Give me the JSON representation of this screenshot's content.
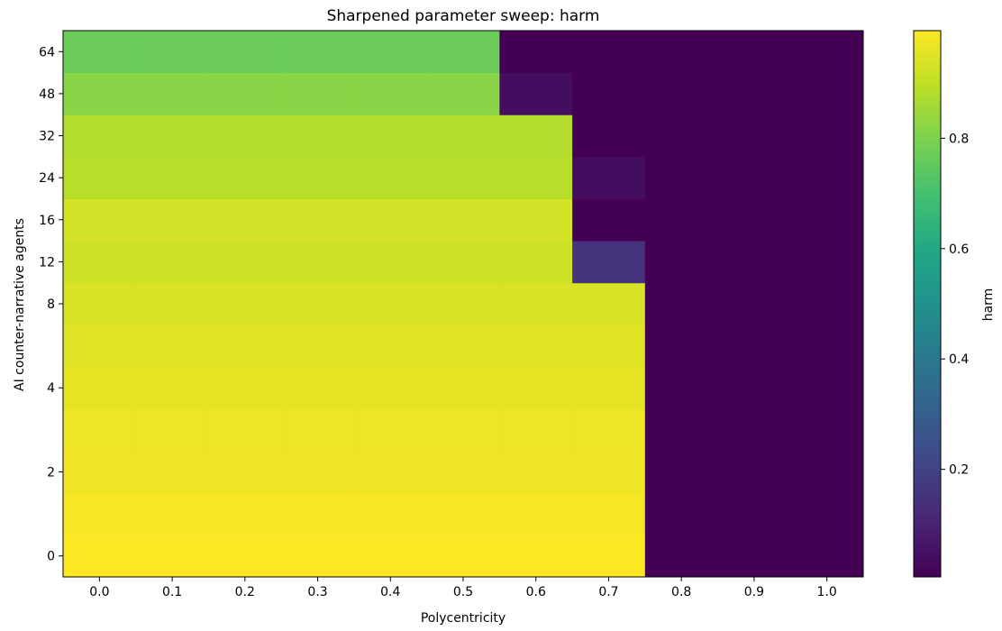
{
  "chart_data": {
    "type": "heatmap",
    "title": "Sharpened parameter sweep: harm",
    "xlabel": "Polycentricity",
    "ylabel": "AI counter-narrative agents",
    "x": [
      0.0,
      0.1,
      0.2,
      0.3,
      0.4,
      0.5,
      0.6,
      0.7,
      0.8,
      0.9,
      1.0
    ],
    "x_tick_labels": [
      "0.0",
      "0.1",
      "0.2",
      "0.3",
      "0.4",
      "0.5",
      "0.6",
      "0.7",
      "0.8",
      "0.9",
      "1.0"
    ],
    "y": [
      0,
      1,
      2,
      3,
      4,
      6,
      8,
      12,
      16,
      24,
      32,
      48,
      64
    ],
    "y_tick_labels": [
      "0",
      "2",
      "4",
      "8",
      "12",
      "16",
      "24",
      "32",
      "48",
      "64"
    ],
    "values": [
      [
        0.995,
        0.995,
        0.995,
        0.995,
        0.995,
        0.995,
        0.995,
        0.995,
        0.005,
        0.005,
        0.005
      ],
      [
        0.985,
        0.985,
        0.985,
        0.985,
        0.985,
        0.985,
        0.985,
        0.985,
        0.005,
        0.005,
        0.005
      ],
      [
        0.975,
        0.975,
        0.975,
        0.975,
        0.975,
        0.975,
        0.975,
        0.975,
        0.005,
        0.005,
        0.005
      ],
      [
        0.97,
        0.97,
        0.97,
        0.97,
        0.97,
        0.97,
        0.97,
        0.97,
        0.005,
        0.005,
        0.005
      ],
      [
        0.96,
        0.96,
        0.96,
        0.96,
        0.96,
        0.96,
        0.96,
        0.96,
        0.005,
        0.005,
        0.005
      ],
      [
        0.95,
        0.95,
        0.95,
        0.95,
        0.95,
        0.95,
        0.95,
        0.95,
        0.005,
        0.005,
        0.005
      ],
      [
        0.94,
        0.94,
        0.94,
        0.94,
        0.94,
        0.94,
        0.94,
        0.94,
        0.005,
        0.005,
        0.005
      ],
      [
        0.92,
        0.92,
        0.92,
        0.92,
        0.92,
        0.92,
        0.92,
        0.15,
        0.005,
        0.005,
        0.005
      ],
      [
        0.93,
        0.93,
        0.93,
        0.93,
        0.93,
        0.93,
        0.93,
        0.005,
        0.005,
        0.005,
        0.005
      ],
      [
        0.89,
        0.89,
        0.89,
        0.89,
        0.89,
        0.89,
        0.89,
        0.04,
        0.005,
        0.005,
        0.005
      ],
      [
        0.88,
        0.88,
        0.88,
        0.88,
        0.88,
        0.88,
        0.88,
        0.005,
        0.005,
        0.005,
        0.005
      ],
      [
        0.82,
        0.82,
        0.82,
        0.82,
        0.82,
        0.82,
        0.04,
        0.005,
        0.005,
        0.005,
        0.005
      ],
      [
        0.77,
        0.77,
        0.77,
        0.77,
        0.77,
        0.77,
        0.005,
        0.005,
        0.005,
        0.005,
        0.005
      ]
    ],
    "colorbar": {
      "label": "harm",
      "colormap": "viridis",
      "range": [
        0.005,
        0.995
      ],
      "ticks": [
        0.2,
        0.4,
        0.6,
        0.8
      ],
      "tick_labels": [
        "0.2",
        "0.4",
        "0.6",
        "0.8"
      ]
    },
    "grid": false,
    "legend": "none"
  }
}
